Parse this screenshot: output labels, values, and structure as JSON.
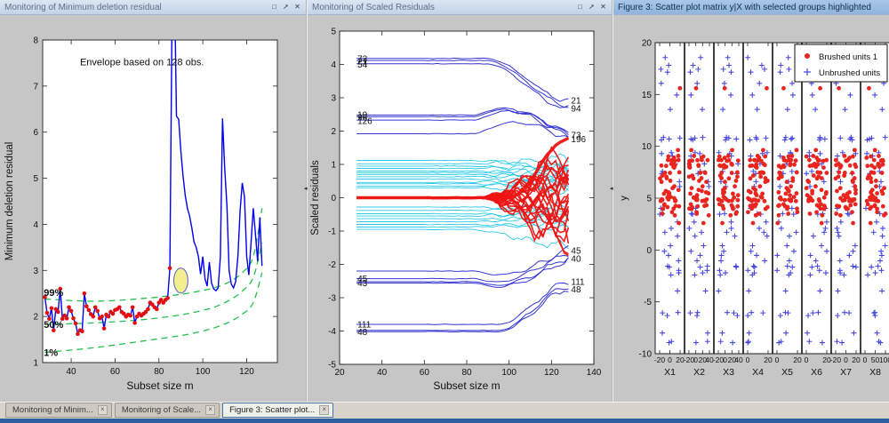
{
  "window_controls": {
    "maximize": "□",
    "undock": "➚",
    "close": "✕"
  },
  "icons": {
    "splitter_collapse": "◂",
    "tab_close": "×"
  },
  "colors": {
    "panel_bg": "#c6c6c6",
    "axes_bg": "#ffffff",
    "mdr_line_blue": "#0000ee",
    "marker_red": "#e01010",
    "envelope_green": "#22c04a",
    "highlight_yellow": "#f2ee8a",
    "cyan_traj": "#1ec8e6",
    "dark_blue_traj": "#2a2ad0",
    "red_traj": "#ee1414",
    "brushed_red": "#e8261f",
    "unbrushed_blue": "#4848e0"
  },
  "panels": [
    {
      "title": "Monitoring of Minimum deletion residual",
      "active": false
    },
    {
      "title": "Monitoring of Scaled Residuals",
      "active": false
    },
    {
      "title": "Figure 3: Scatter plot matrix y|X with selected groups highlighted",
      "active": true
    }
  ],
  "tabs": [
    {
      "label": "Monitoring of Minim...",
      "active": false
    },
    {
      "label": "Monitoring of Scale...",
      "active": false
    },
    {
      "label": "Figure 3: Scatter plot...",
      "active": true
    }
  ],
  "chart_data": [
    {
      "type": "line",
      "title": "Monitoring of Minimum deletion residual",
      "annotation": "Envelope based on 128 obs.",
      "xlabel": "Subset size m",
      "ylabel": "Minimum deletion residual",
      "xlim": [
        27,
        134
      ],
      "ylim": [
        1,
        8
      ],
      "xticks": [
        40,
        60,
        80,
        100,
        120
      ],
      "yticks": [
        1,
        2,
        3,
        4,
        5,
        6,
        7,
        8
      ],
      "envelope_labels": [
        {
          "text": "99%",
          "x": 27.5,
          "y": 2.52
        },
        {
          "text": "50%",
          "x": 27.5,
          "y": 1.83
        },
        {
          "text": "1%",
          "x": 27.5,
          "y": 1.22
        }
      ],
      "envelopes": {
        "p99": [
          [
            28,
            2.38
          ],
          [
            50,
            2.33
          ],
          [
            70,
            2.38
          ],
          [
            85,
            2.45
          ],
          [
            95,
            2.52
          ],
          [
            105,
            2.62
          ],
          [
            112,
            2.75
          ],
          [
            118,
            2.95
          ],
          [
            123,
            3.3
          ],
          [
            127,
            4.35
          ]
        ],
        "p50": [
          [
            28,
            1.83
          ],
          [
            50,
            1.86
          ],
          [
            70,
            1.92
          ],
          [
            85,
            2.0
          ],
          [
            95,
            2.08
          ],
          [
            105,
            2.2
          ],
          [
            112,
            2.35
          ],
          [
            118,
            2.55
          ],
          [
            123,
            2.85
          ],
          [
            127,
            3.6
          ]
        ],
        "p1": [
          [
            28,
            1.22
          ],
          [
            50,
            1.32
          ],
          [
            70,
            1.45
          ],
          [
            85,
            1.55
          ],
          [
            95,
            1.63
          ],
          [
            105,
            1.75
          ],
          [
            112,
            1.88
          ],
          [
            118,
            2.05
          ],
          [
            123,
            2.3
          ],
          [
            127,
            2.95
          ]
        ]
      },
      "series_mdr": [
        [
          28,
          2.42
        ],
        [
          29,
          2.08
        ],
        [
          30,
          1.95
        ],
        [
          31,
          2.18
        ],
        [
          32,
          1.7
        ],
        [
          33,
          2.16
        ],
        [
          34,
          2.1
        ],
        [
          35,
          2.6
        ],
        [
          36,
          1.95
        ],
        [
          37,
          2.02
        ],
        [
          38,
          1.96
        ],
        [
          39,
          2.2
        ],
        [
          40,
          2.12
        ],
        [
          41,
          1.96
        ],
        [
          42,
          1.85
        ],
        [
          43,
          1.62
        ],
        [
          44,
          1.7
        ],
        [
          45,
          1.68
        ],
        [
          46,
          2.5
        ],
        [
          47,
          2.22
        ],
        [
          48,
          2.14
        ],
        [
          49,
          2.05
        ],
        [
          50,
          2.0
        ],
        [
          51,
          2.2
        ],
        [
          52,
          2.12
        ],
        [
          53,
          1.96
        ],
        [
          54,
          2.0
        ],
        [
          55,
          1.74
        ],
        [
          56,
          2.04
        ],
        [
          57,
          2.0
        ],
        [
          58,
          2.1
        ],
        [
          59,
          2.06
        ],
        [
          60,
          2.14
        ],
        [
          61,
          2.16
        ],
        [
          62,
          2.2
        ],
        [
          63,
          2.1
        ],
        [
          64,
          2.06
        ],
        [
          65,
          2.0
        ],
        [
          66,
          2.04
        ],
        [
          67,
          2.02
        ],
        [
          68,
          2.2
        ],
        [
          69,
          1.86
        ],
        [
          70,
          2.0
        ],
        [
          71,
          2.06
        ],
        [
          72,
          2.02
        ],
        [
          73,
          2.06
        ],
        [
          74,
          2.1
        ],
        [
          75,
          2.16
        ],
        [
          76,
          2.3
        ],
        [
          77,
          2.26
        ],
        [
          78,
          2.2
        ],
        [
          79,
          2.16
        ],
        [
          80,
          2.3
        ],
        [
          81,
          2.36
        ],
        [
          82,
          2.3
        ],
        [
          83,
          2.36
        ],
        [
          84,
          2.4
        ],
        [
          85,
          3.05
        ],
        [
          86,
          8.8
        ],
        [
          87,
          9.6
        ],
        [
          88,
          6.35
        ],
        [
          89,
          6.28
        ],
        [
          90,
          5.6
        ],
        [
          91,
          5.05
        ],
        [
          92,
          4.62
        ],
        [
          93,
          4.35
        ],
        [
          94,
          4.18
        ],
        [
          95,
          3.92
        ],
        [
          96,
          3.62
        ],
        [
          97,
          3.5
        ],
        [
          98,
          3.3
        ],
        [
          99,
          2.92
        ],
        [
          100,
          3.3
        ],
        [
          101,
          2.82
        ],
        [
          102,
          2.66
        ],
        [
          103,
          3.18
        ],
        [
          104,
          2.72
        ],
        [
          105,
          2.6
        ],
        [
          106,
          2.56
        ],
        [
          107,
          2.62
        ],
        [
          108,
          3.3
        ],
        [
          109,
          6.3
        ],
        [
          110,
          5.2
        ],
        [
          111,
          4.4
        ],
        [
          112,
          3.0
        ],
        [
          113,
          2.7
        ],
        [
          114,
          2.62
        ],
        [
          115,
          2.76
        ],
        [
          116,
          3.3
        ],
        [
          117,
          4.3
        ],
        [
          118,
          4.9
        ],
        [
          119,
          4.6
        ],
        [
          120,
          3.3
        ],
        [
          121,
          2.9
        ],
        [
          122,
          3.6
        ],
        [
          123,
          4.35
        ],
        [
          124,
          3.8
        ],
        [
          125,
          3.2
        ],
        [
          126,
          4.15
        ],
        [
          127,
          3.1
        ]
      ],
      "marker_until": 85,
      "highlight_ellipse": {
        "x": 90,
        "y": 2.78,
        "rx": 3.2,
        "ry": 0.27
      }
    },
    {
      "type": "line-multi",
      "title": "Monitoring of Scaled Residuals",
      "xlabel": "Subset size m",
      "ylabel": "Scaled residuals",
      "xlim": [
        20,
        140
      ],
      "ylim": [
        -5,
        5
      ],
      "xticks": [
        20,
        40,
        60,
        80,
        100,
        120,
        140
      ],
      "yticks": [
        -5,
        -4,
        -3,
        -2,
        -1,
        0,
        1,
        2,
        3,
        4,
        5
      ],
      "m_start": 28,
      "m_end": 128,
      "groups": [
        {
          "name": "cyan_unbrushed",
          "color": "#1ec8e6",
          "width": 0.9,
          "fan_start": 80,
          "bump": 0,
          "jitter": 0.16,
          "lines": [
            [
              1.12,
              0.92
            ],
            [
              1.02,
              1.18
            ],
            [
              0.95,
              0.72
            ],
            [
              0.88,
              0.98
            ],
            [
              0.8,
              0.62
            ],
            [
              0.75,
              0.88
            ],
            [
              0.7,
              0.5
            ],
            [
              0.63,
              0.78
            ],
            [
              0.56,
              0.36
            ],
            [
              0.46,
              0.62
            ],
            [
              0.42,
              0.3
            ],
            [
              0.35,
              0.52
            ],
            [
              0.3,
              0.2
            ],
            [
              -0.28,
              -0.44
            ],
            [
              -0.38,
              -0.3
            ],
            [
              -0.48,
              -0.62
            ],
            [
              -0.55,
              -0.4
            ],
            [
              -0.63,
              -0.76
            ],
            [
              -0.72,
              -0.56
            ],
            [
              -0.8,
              -0.92
            ],
            [
              -0.88,
              -0.7
            ],
            [
              -0.95,
              -1.45
            ]
          ]
        },
        {
          "name": "blue_extreme_upper",
          "color": "#2a2ad0",
          "width": 1.0,
          "fan_start": 88,
          "bump": 0.05,
          "jitter": 0.08,
          "lines": [
            [
              4.18,
              2.9
            ],
            [
              4.12,
              2.76
            ],
            [
              4.02,
              2.64
            ]
          ]
        },
        {
          "name": "blue_mid",
          "color": "#2a2ad0",
          "width": 1.0,
          "fan_start": 85,
          "bump": 0.42,
          "jitter": 0.1,
          "lines": [
            [
              2.48,
              1.86
            ],
            [
              2.43,
              1.8
            ],
            [
              2.33,
              1.92
            ],
            [
              1.92,
              1.74
            ]
          ]
        },
        {
          "name": "blue_low1",
          "color": "#2a2ad0",
          "width": 1.0,
          "fan_start": 85,
          "bump": -0.3,
          "jitter": 0.1,
          "lines": [
            [
              -2.2,
              -1.56
            ],
            [
              -2.43,
              -1.66
            ],
            [
              -2.52,
              -1.8
            ],
            [
              -2.56,
              -1.88
            ]
          ]
        },
        {
          "name": "blue_low2",
          "color": "#2a2ad0",
          "width": 1.0,
          "fan_start": 92,
          "bump": -0.12,
          "jitter": 0.1,
          "lines": [
            [
              -3.8,
              -2.52
            ],
            [
              -3.98,
              -2.64
            ],
            [
              -4.02,
              -2.74
            ]
          ]
        },
        {
          "name": "red_brushed",
          "color": "#ee1414",
          "width": 1.6,
          "fan_start": 86,
          "bump": 0,
          "jitter": 0.5,
          "lines": [
            [
              0,
              1.12
            ],
            [
              0,
              1.0
            ],
            [
              0,
              0.9
            ],
            [
              0,
              0.8
            ],
            [
              0,
              0.7
            ],
            [
              0,
              0.6
            ],
            [
              0,
              0.5
            ],
            [
              0,
              0.4
            ],
            [
              0,
              0.3
            ],
            [
              0,
              0.2
            ],
            [
              0,
              0.1
            ],
            [
              0,
              0.0
            ],
            [
              0,
              -0.1
            ],
            [
              0,
              -0.2
            ],
            [
              0,
              -0.3
            ],
            [
              0,
              -0.4
            ],
            [
              0,
              -0.5
            ],
            [
              0,
              -0.62
            ],
            [
              0,
              -0.75
            ],
            [
              0,
              -0.88
            ],
            [
              0,
              -1.0
            ],
            [
              0,
              -1.15
            ],
            [
              0,
              -1.32
            ]
          ]
        },
        {
          "name": "red_thick",
          "color": "#ee1414",
          "width": 3.5,
          "fan_start": 100,
          "bump": 0,
          "jitter": 0.05,
          "lines": [
            [
              0,
              1.78
            ]
          ]
        }
      ],
      "labels_left": [
        {
          "text": "73",
          "y": 4.18
        },
        {
          "text": "21",
          "y": 4.1
        },
        {
          "text": "54",
          "y": 4.0
        },
        {
          "text": "19",
          "y": 2.5
        },
        {
          "text": "96",
          "y": 2.42
        },
        {
          "text": "126",
          "y": 2.31
        },
        {
          "text": "45",
          "y": -2.42
        },
        {
          "text": "43",
          "y": -2.56
        },
        {
          "text": "111",
          "y": -3.8
        },
        {
          "text": "48",
          "y": -4.02
        }
      ],
      "labels_right": [
        {
          "text": "21",
          "y": 2.92
        },
        {
          "text": "94",
          "y": 2.68
        },
        {
          "text": "73",
          "y": 1.88
        },
        {
          "text": "196",
          "y": 1.76
        },
        {
          "text": "45",
          "y": -1.58
        },
        {
          "text": "40",
          "y": -1.82
        },
        {
          "text": "111",
          "y": -2.52
        },
        {
          "text": "48",
          "y": -2.74
        }
      ]
    },
    {
      "type": "scatter-matrix",
      "title": "Figure 3: Scatter plot matrix y|X with selected groups highlighted",
      "ylabel": "y",
      "ylim": [
        -10,
        20
      ],
      "yticks": [
        20,
        15,
        10,
        5,
        0,
        -5,
        -10
      ],
      "columns": [
        {
          "label": "X1",
          "ticks": [
            "-20",
            "0",
            "20"
          ]
        },
        {
          "label": "X2",
          "ticks": [
            "-20",
            "0",
            "20",
            "40"
          ]
        },
        {
          "label": "X3",
          "ticks": [
            "-20",
            "0",
            "20",
            "40"
          ]
        },
        {
          "label": "X4",
          "ticks": [
            "0",
            "20"
          ]
        },
        {
          "label": "X5",
          "ticks": [
            "0",
            "20"
          ]
        },
        {
          "label": "X6",
          "ticks": [
            "0",
            "20"
          ]
        },
        {
          "label": "X7",
          "ticks": [
            "-20",
            "0",
            "20"
          ]
        },
        {
          "label": "X8",
          "ticks": [
            "0",
            "50",
            "100"
          ]
        }
      ],
      "legend": [
        {
          "label": "Brushed units 1",
          "marker": "dot",
          "color": "#e8261f"
        },
        {
          "label": "Unbrushed units",
          "marker": "plus",
          "color": "#4848e0"
        }
      ],
      "points": {
        "brushed_count": 55,
        "unbrushed_count": 42,
        "brushed_y_mean": 6.3,
        "brushed_y_sd": 3.1,
        "brushed_outlier_y": 15.6,
        "seed": 11
      }
    }
  ]
}
